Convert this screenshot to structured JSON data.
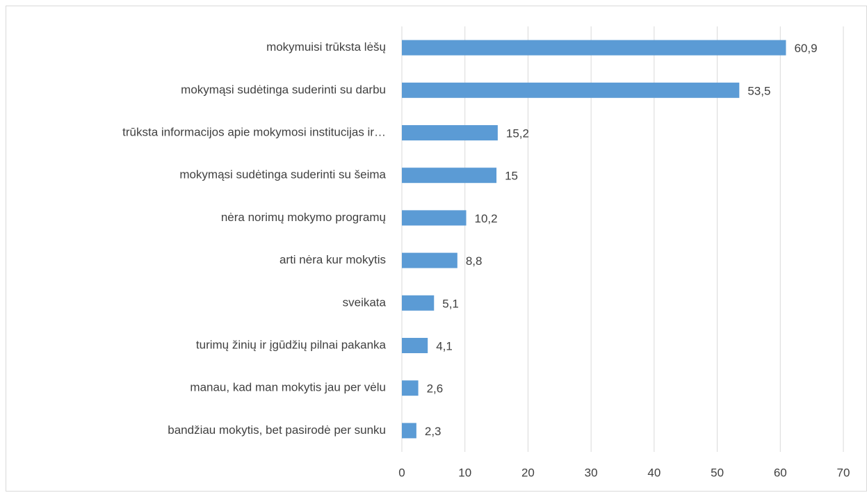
{
  "chart_data": {
    "type": "barh",
    "categories": [
      "mokymuisi trūksta lėšų",
      "mokymąsi sudėtinga suderinti su darbu",
      "trūksta informacijos apie mokymosi institucijas ir…",
      "mokymąsi sudėtinga suderinti su šeima",
      "nėra norimų mokymo programų",
      "arti nėra kur mokytis",
      "sveikata",
      "turimų žinių ir įgūdžių pilnai pakanka",
      "manau, kad man mokytis jau per vėlu",
      "bandžiau mokytis, bet pasirodė per sunku"
    ],
    "values": [
      60.9,
      53.5,
      15.2,
      15,
      10.2,
      8.8,
      5.1,
      4.1,
      2.6,
      2.3
    ],
    "value_labels": [
      "60,9",
      "53,5",
      "15,2",
      "15",
      "10,2",
      "8,8",
      "5,1",
      "4,1",
      "2,6",
      "2,3"
    ],
    "color": "#5b9bd5",
    "xlim": [
      0,
      70
    ],
    "xticks": [
      0,
      10,
      20,
      30,
      40,
      50,
      60,
      70
    ],
    "grid": true
  }
}
